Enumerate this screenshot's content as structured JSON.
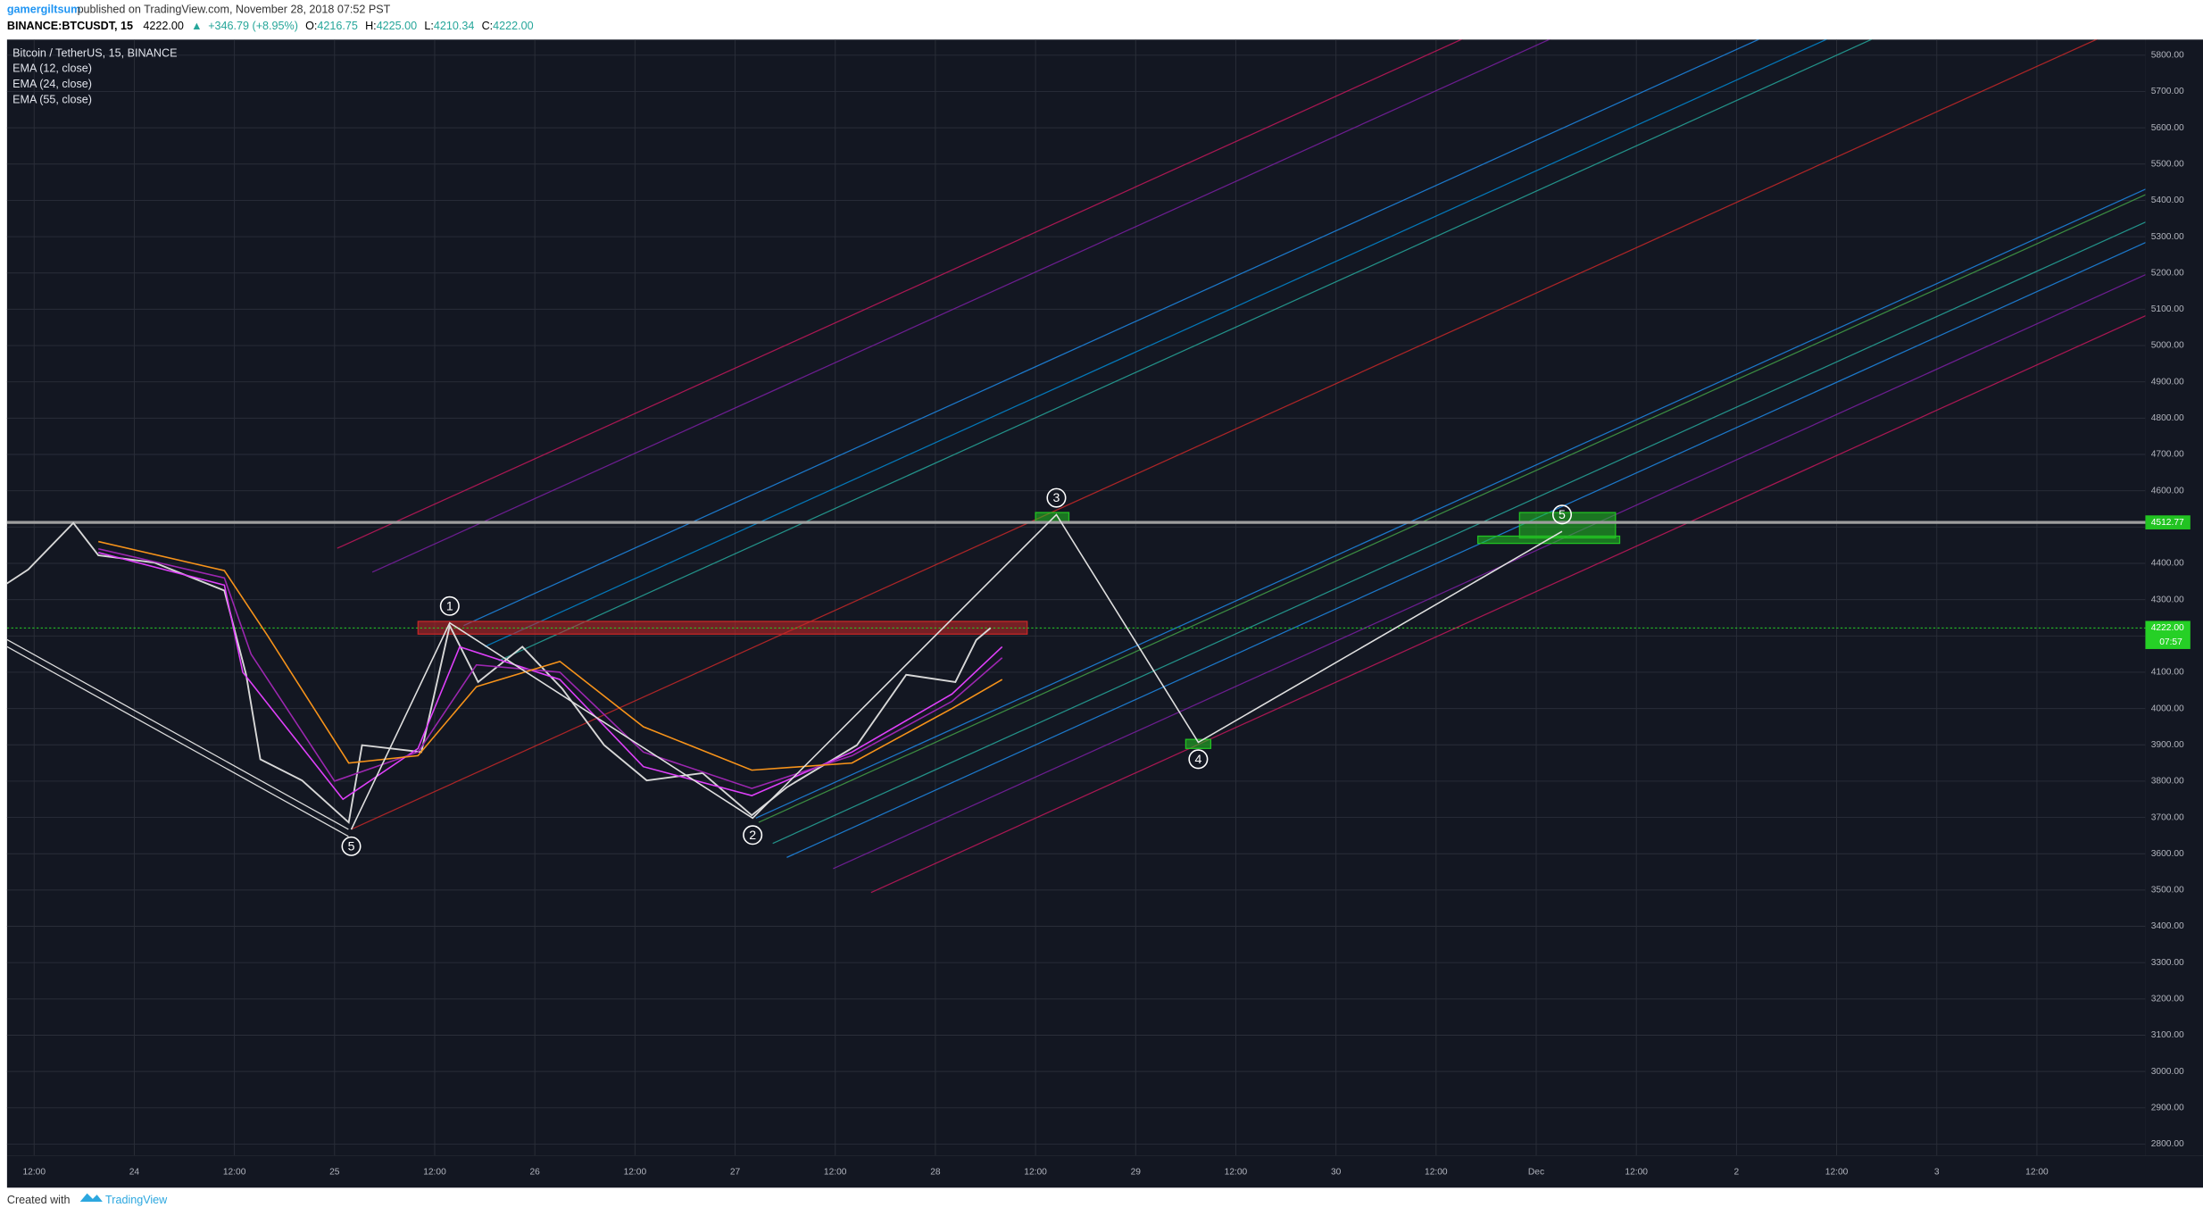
{
  "header": {
    "author": "gamergiltsum",
    "published": "published on TradingView.com, November 28, 2018 07:52 PST"
  },
  "symbol_bar": {
    "symbol": "BINANCE:BTCUSDT, 15",
    "last": "4222.00",
    "arrow": "▲",
    "change": "+346.79 (+8.95%)",
    "o_label": "O:",
    "o": "4216.75",
    "h_label": "H:",
    "h": "4225.00",
    "l_label": "L:",
    "l": "4210.34",
    "c_label": "C:",
    "c": "4222.00"
  },
  "footer": {
    "created": "Created with",
    "brand": "TradingView"
  },
  "chart_data": {
    "type": "line",
    "title": "Bitcoin / TetherUS, 15, BINANCE",
    "xlim": [
      8.75,
      265
    ],
    "ylim": [
      2769,
      5843
    ],
    "xticks": [
      {
        "value": 12,
        "label": "12:00"
      },
      {
        "value": 24,
        "label": "24"
      },
      {
        "value": 36,
        "label": "12:00"
      },
      {
        "value": 48,
        "label": "25"
      },
      {
        "value": 60,
        "label": "12:00"
      },
      {
        "value": 72,
        "label": "26"
      },
      {
        "value": 84,
        "label": "12:00"
      },
      {
        "value": 96,
        "label": "27"
      },
      {
        "value": 108,
        "label": "12:00"
      },
      {
        "value": 120,
        "label": "28"
      },
      {
        "value": 132,
        "label": "12:00"
      },
      {
        "value": 144,
        "label": "29"
      },
      {
        "value": 156,
        "label": "12:00"
      },
      {
        "value": 168,
        "label": "30"
      },
      {
        "value": 180,
        "label": "12:00"
      },
      {
        "value": 192,
        "label": "Dec"
      },
      {
        "value": 204,
        "label": "12:00"
      },
      {
        "value": 216,
        "label": "2"
      },
      {
        "value": 228,
        "label": "12:00"
      },
      {
        "value": 240,
        "label": "3"
      },
      {
        "value": 252,
        "label": "12:00"
      }
    ],
    "yticks": [
      {
        "value": 2800,
        "label": "2800.00"
      },
      {
        "value": 2900,
        "label": "2900.00"
      },
      {
        "value": 3000,
        "label": "3000.00"
      },
      {
        "value": 3100,
        "label": "3100.00"
      },
      {
        "value": 3200,
        "label": "3200.00"
      },
      {
        "value": 3300,
        "label": "3300.00"
      },
      {
        "value": 3400,
        "label": "3400.00"
      },
      {
        "value": 3500,
        "label": "3500.00"
      },
      {
        "value": 3600,
        "label": "3600.00"
      },
      {
        "value": 3700,
        "label": "3700.00"
      },
      {
        "value": 3800,
        "label": "3800.00"
      },
      {
        "value": 3900,
        "label": "3900.00"
      },
      {
        "value": 4000,
        "label": "4000.00"
      },
      {
        "value": 4100,
        "label": "4100.00"
      },
      {
        "value": 4200,
        "label": "4200.00"
      },
      {
        "value": 4300,
        "label": "4300.00"
      },
      {
        "value": 4400,
        "label": "4400.00"
      },
      {
        "value": 4500,
        "label": "4500.00"
      },
      {
        "value": 4600,
        "label": "4600.00"
      },
      {
        "value": 4700,
        "label": "4700.00"
      },
      {
        "value": 4800,
        "label": "4800.00"
      },
      {
        "value": 4900,
        "label": "4900.00"
      },
      {
        "value": 5000,
        "label": "5000.00"
      },
      {
        "value": 5100,
        "label": "5100.00"
      },
      {
        "value": 5200,
        "label": "5200.00"
      },
      {
        "value": 5300,
        "label": "5300.00"
      },
      {
        "value": 5400,
        "label": "5400.00"
      },
      {
        "value": 5500,
        "label": "5500.00"
      },
      {
        "value": 5600,
        "label": "5600.00"
      },
      {
        "value": 5700,
        "label": "5700.00"
      },
      {
        "value": 5800,
        "label": "5800.00"
      }
    ],
    "grid": true,
    "series": [
      {
        "name": "BTCUSDT",
        "color": "#d8d8d8",
        "x": [
          8.7,
          11.3,
          16.7,
          19.7,
          26.4,
          34.8,
          37.4,
          39.1,
          44.1,
          49.7,
          51.3,
          58.4,
          61.8,
          65.2,
          70.5,
          75.3,
          80.3,
          85.4,
          92.1,
          98,
          102.2,
          110.6,
          116.5,
          122.4,
          124.9,
          126.6
        ],
        "values": [
          4344,
          4383,
          4511,
          4422,
          4402,
          4325,
          4093,
          3860,
          3802,
          3686,
          3899,
          3880,
          4228,
          4073,
          4170,
          4054,
          3899,
          3802,
          3822,
          3706,
          3783,
          3899,
          4093,
          4073,
          4189,
          4222
        ]
      },
      {
        "name": "EMA (12, close)",
        "color": "#e040fb",
        "x": [
          19.7,
          34.8,
          37,
          49,
          58,
          63,
          75,
          85,
          98,
          110,
          122,
          128
        ],
        "values": [
          4430,
          4340,
          4100,
          3750,
          3890,
          4170,
          4080,
          3840,
          3760,
          3880,
          4040,
          4170
        ]
      },
      {
        "name": "EMA (24, close)",
        "color": "#9c27b0",
        "x": [
          19.7,
          34.8,
          38,
          48,
          58,
          65,
          75,
          85,
          98,
          110,
          122,
          128
        ],
        "values": [
          4440,
          4360,
          4150,
          3800,
          3880,
          4120,
          4100,
          3880,
          3780,
          3870,
          4020,
          4140
        ]
      },
      {
        "name": "EMA (55, close)",
        "color": "#f7931a",
        "x": [
          19.7,
          34.8,
          40,
          49.7,
          58,
          65,
          75,
          85,
          98,
          110,
          122,
          128
        ],
        "values": [
          4460,
          4380,
          4200,
          3850,
          3870,
          4060,
          4130,
          3950,
          3830,
          3850,
          4000,
          4080
        ]
      }
    ],
    "waves": {
      "x": [
        50,
        61.8,
        98.1,
        134.5,
        151.5,
        195.1
      ],
      "values": [
        3667,
        4236,
        3698,
        4534,
        3907,
        4488
      ],
      "labels": [
        "5",
        "1",
        "2",
        "3",
        "4",
        "5"
      ]
    },
    "levels": [
      {
        "value": 4512.77,
        "color": "#9e9e9e"
      }
    ],
    "current_price": {
      "value": 4222,
      "label": "4222.00",
      "countdown": "07:57",
      "color": "#26d026"
    },
    "zones": [
      {
        "x": [
          58,
          131
        ],
        "y": [
          4205,
          4240
        ],
        "color": "#c62828"
      },
      {
        "x": [
          132,
          136
        ],
        "y": [
          4512.77,
          4540
        ],
        "color": "#22c322"
      },
      {
        "x": [
          150,
          153
        ],
        "y": [
          3890,
          3915
        ],
        "color": "#22c322"
      },
      {
        "x": [
          190,
          201.5
        ],
        "y": [
          4470,
          4540
        ],
        "color": "#22c322"
      },
      {
        "x": [
          185,
          202
        ],
        "y": [
          4455,
          4475
        ],
        "color": "#22c322"
      }
    ]
  }
}
